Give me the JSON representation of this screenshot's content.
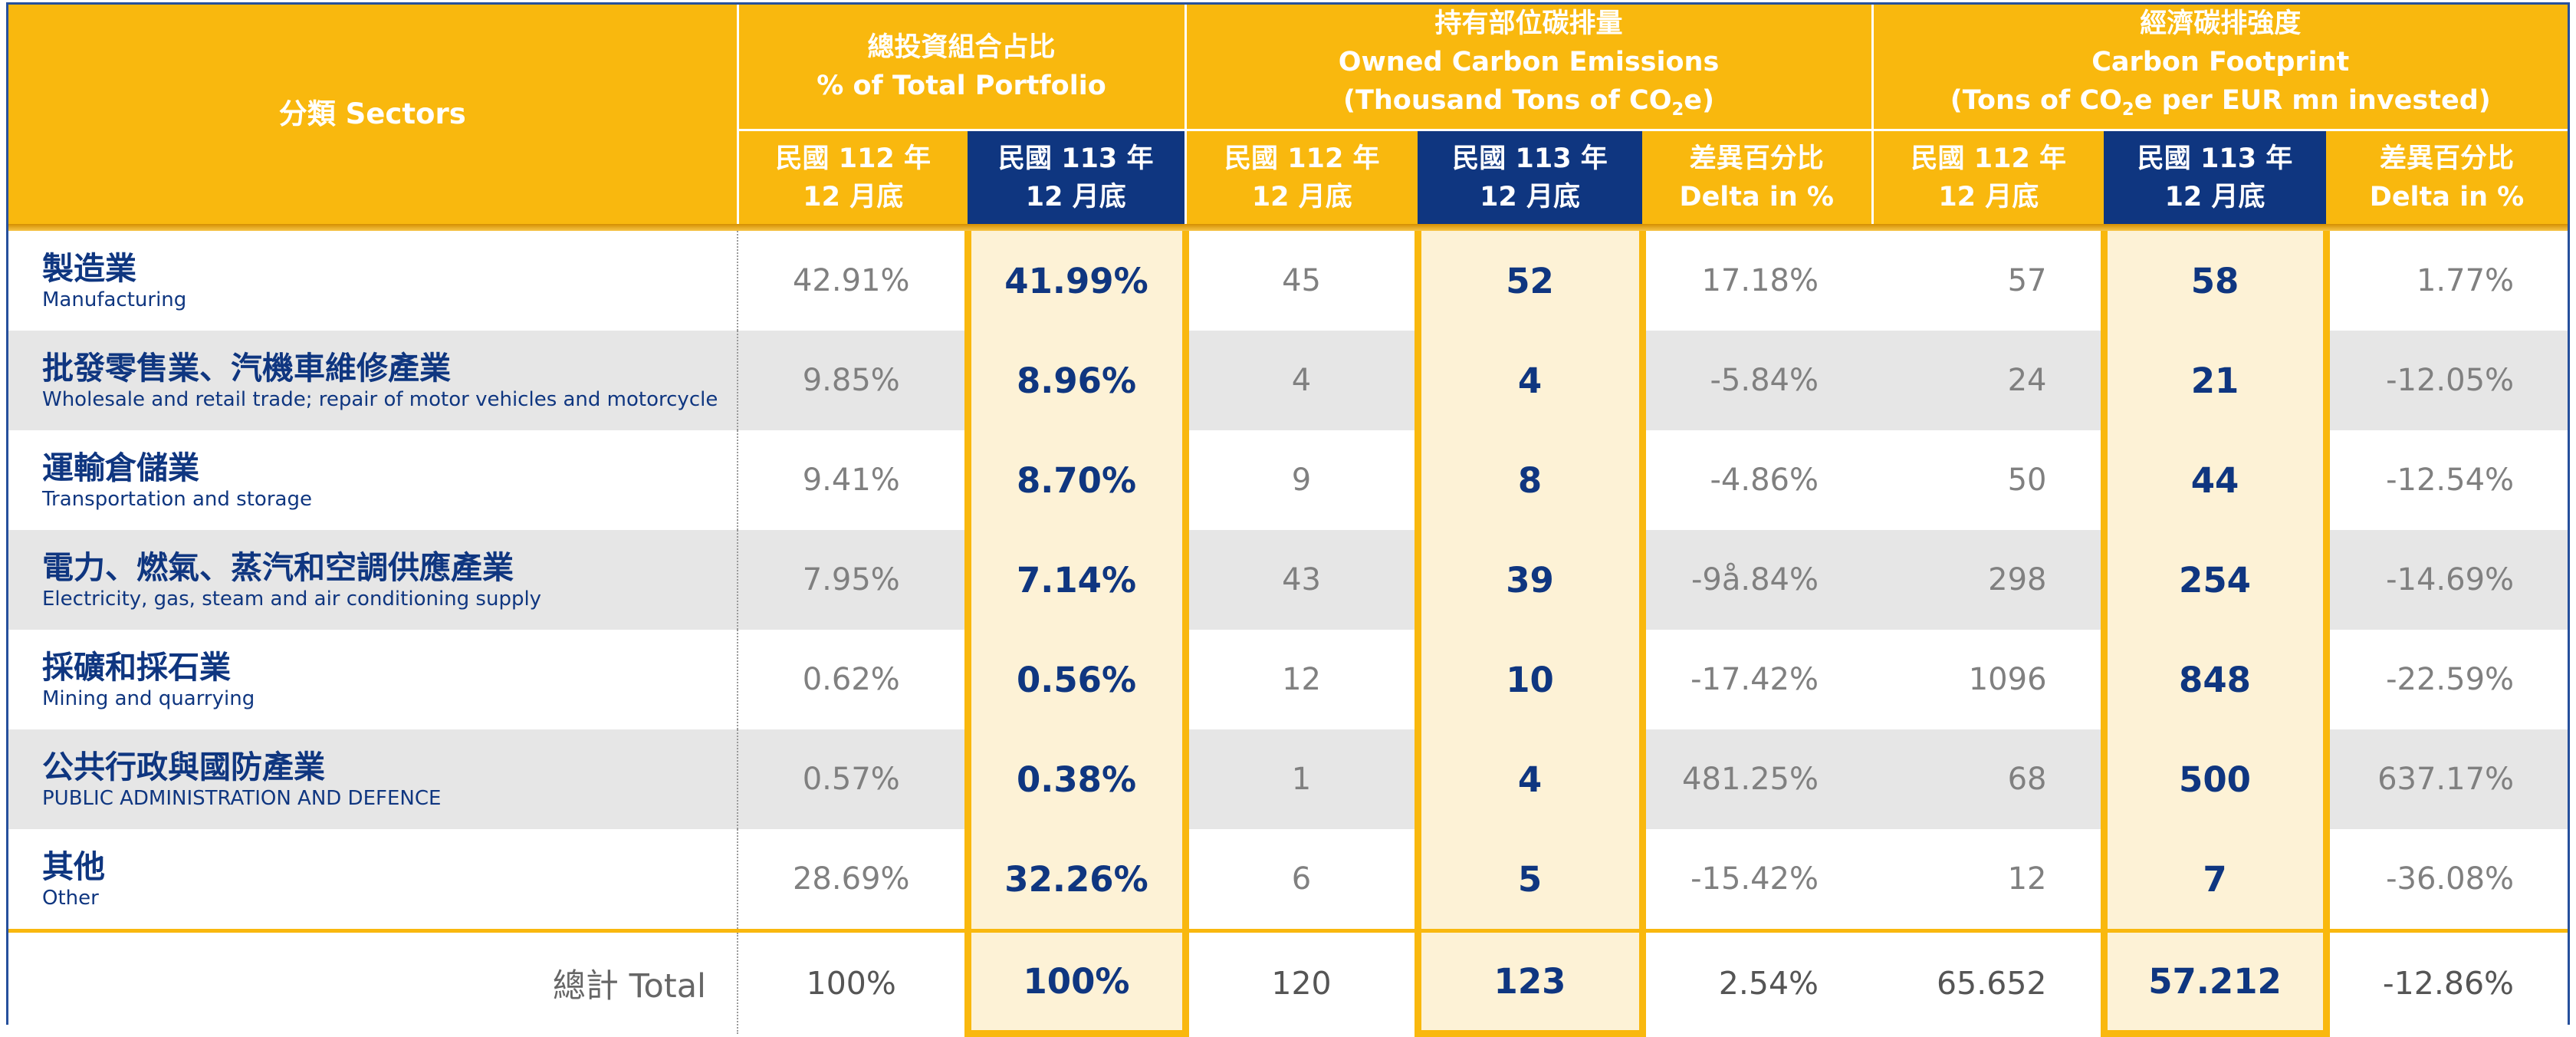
{
  "header": {
    "sector_label": "分類 Sectors",
    "groups": [
      {
        "zh": "總投資組合占比",
        "en": "% of Total Portfolio"
      },
      {
        "zh": "持有部位碳排量",
        "en": "Owned Carbon Emissions",
        "en2_pre": "(Thousand Tons of CO",
        "en2_sub": "2",
        "en2_post": "e)"
      },
      {
        "zh": "經濟碳排強度",
        "en": "Carbon Footprint",
        "en2_pre": "(Tons of CO",
        "en2_sub": "2",
        "en2_post": "e per EUR mn invested)"
      }
    ],
    "y112_line1": "民國 112 年",
    "y112_line2": "12 月底",
    "y113_line1": "民國 113 年",
    "y113_line2": "12 月底",
    "delta_line1": "差異百分比",
    "delta_line2": "Delta in %"
  },
  "rows": [
    {
      "zh": "製造業",
      "en": "Manufacturing",
      "pct112": "42.91%",
      "pct113": "41.99%",
      "em112": "45",
      "em113": "52",
      "em_delta": "17.18%",
      "fp112": "57",
      "fp113": "58",
      "fp_delta": "1.77%"
    },
    {
      "zh": "批發零售業、汽機車維修產業",
      "en": "Wholesale and retail trade; repair of motor vehicles and motorcycle",
      "pct112": "9.85%",
      "pct113": "8.96%",
      "em112": "4",
      "em113": "4",
      "em_delta": "-5.84%",
      "fp112": "24",
      "fp113": "21",
      "fp_delta": "-12.05%"
    },
    {
      "zh": "運輸倉儲業",
      "en": "Transportation and storage",
      "pct112": "9.41%",
      "pct113": "8.70%",
      "em112": "9",
      "em113": "8",
      "em_delta": "-4.86%",
      "fp112": "50",
      "fp113": "44",
      "fp_delta": "-12.54%"
    },
    {
      "zh": "電力、燃氣、蒸汽和空調供應產業",
      "en": "Electricity, gas, steam and air conditioning supply",
      "pct112": "7.95%",
      "pct113": "7.14%",
      "em112": "43",
      "em113": "39",
      "em_delta": "-9å.84%",
      "fp112": "298",
      "fp113": "254",
      "fp_delta": "-14.69%"
    },
    {
      "zh": "採礦和採石業",
      "en": "Mining and quarrying",
      "pct112": "0.62%",
      "pct113": "0.56%",
      "em112": "12",
      "em113": "10",
      "em_delta": "-17.42%",
      "fp112": "1096",
      "fp113": "848",
      "fp_delta": "-22.59%"
    },
    {
      "zh": "公共行政與國防產業",
      "en": "PUBLIC ADMINISTRATION AND DEFENCE",
      "pct112": "0.57%",
      "pct113": "0.38%",
      "em112": "1",
      "em113": "4",
      "em_delta": "481.25%",
      "fp112": "68",
      "fp113": "500",
      "fp_delta": "637.17%"
    },
    {
      "zh": "其他",
      "en": "Other",
      "pct112": "28.69%",
      "pct113": "32.26%",
      "em112": "6",
      "em113": "5",
      "em_delta": "-15.42%",
      "fp112": "12",
      "fp113": "7",
      "fp_delta": "-36.08%"
    }
  ],
  "total": {
    "label": "總計 Total",
    "pct112": "100%",
    "pct113": "100%",
    "em112": "120",
    "em113": "123",
    "em_delta": "2.54%",
    "fp112": "65.652",
    "fp113": "57.212",
    "fp_delta": "-12.86%"
  },
  "colors": {
    "header_bg": "#f9b80e",
    "year113_bg": "#0f3680",
    "highlight_bg": "#fdf2d6",
    "alt_row_bg": "#e6e6e6",
    "text_navy": "#0f3680"
  }
}
